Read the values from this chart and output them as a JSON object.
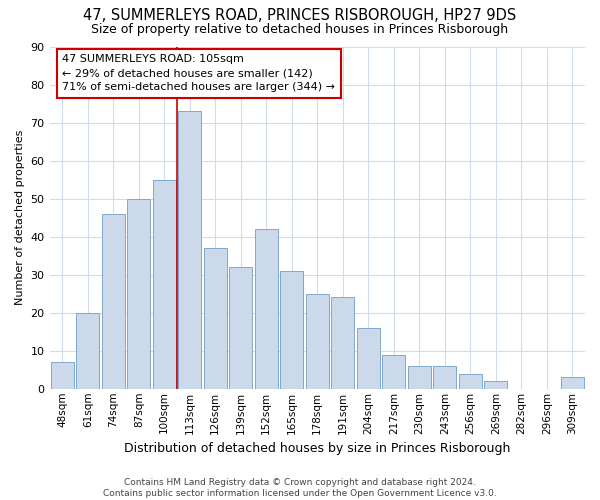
{
  "title": "47, SUMMERLEYS ROAD, PRINCES RISBOROUGH, HP27 9DS",
  "subtitle": "Size of property relative to detached houses in Princes Risborough",
  "xlabel": "Distribution of detached houses by size in Princes Risborough",
  "ylabel": "Number of detached properties",
  "bar_labels": [
    "48sqm",
    "61sqm",
    "74sqm",
    "87sqm",
    "100sqm",
    "113sqm",
    "126sqm",
    "139sqm",
    "152sqm",
    "165sqm",
    "178sqm",
    "191sqm",
    "204sqm",
    "217sqm",
    "230sqm",
    "243sqm",
    "256sqm",
    "269sqm",
    "282sqm",
    "296sqm",
    "309sqm"
  ],
  "bar_values": [
    7,
    20,
    46,
    50,
    55,
    73,
    37,
    32,
    42,
    31,
    25,
    24,
    16,
    9,
    6,
    6,
    4,
    2,
    0,
    0,
    3
  ],
  "bar_color": "#ccd9ea",
  "bar_edge_color": "#7fa8cc",
  "vline_x": 4.5,
  "annotation_text": "47 SUMMERLEYS ROAD: 105sqm\n← 29% of detached houses are smaller (142)\n71% of semi-detached houses are larger (344) →",
  "annotation_box_facecolor": "#ffffff",
  "annotation_box_edgecolor": "#cc0000",
  "vline_color": "#cc0000",
  "ylim": [
    0,
    90
  ],
  "yticks": [
    0,
    10,
    20,
    30,
    40,
    50,
    60,
    70,
    80,
    90
  ],
  "footer_line1": "Contains HM Land Registry data © Crown copyright and database right 2024.",
  "footer_line2": "Contains public sector information licensed under the Open Government Licence v3.0.",
  "background_color": "#ffffff",
  "grid_color": "#d0dce8"
}
